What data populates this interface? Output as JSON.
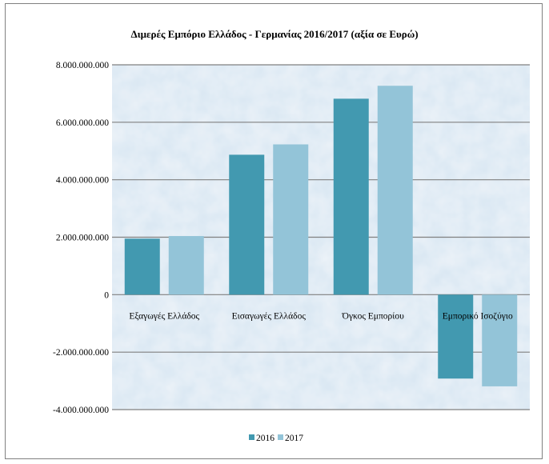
{
  "chart_data": {
    "type": "bar",
    "title": "Διμερές Εμπόριο Ελλάδος - Γερμανίας 2016/2017 (αξία σε Ευρώ)",
    "categories": [
      "Εξαγωγές Ελλάδος",
      "Εισαγωγές Ελλάδος",
      "Όγκος Εμπορίου",
      "Εμπορικό Ισοζύγιο"
    ],
    "series": [
      {
        "name": "2016",
        "values": [
          1950000000,
          4870000000,
          6820000000,
          -2920000000
        ],
        "color": "#4299b0"
      },
      {
        "name": "2017",
        "values": [
          2040000000,
          5230000000,
          7270000000,
          -3190000000
        ],
        "color": "#93c4d8"
      }
    ],
    "y_ticks": [
      {
        "value": 8000000000,
        "label": "8.000.000.000"
      },
      {
        "value": 6000000000,
        "label": "6.000.000.000"
      },
      {
        "value": 4000000000,
        "label": "4.000.000.000"
      },
      {
        "value": 2000000000,
        "label": "2.000.000.000"
      },
      {
        "value": 0,
        "label": "0"
      },
      {
        "value": -2000000000,
        "label": "-2.000.000.000"
      },
      {
        "value": -4000000000,
        "label": "-4.000.000.000"
      }
    ],
    "ylim": [
      -4000000000,
      8000000000
    ],
    "grid": true,
    "legend_position": "bottom",
    "plot_background": "#dbe8f3",
    "grid_color": "#808080"
  }
}
